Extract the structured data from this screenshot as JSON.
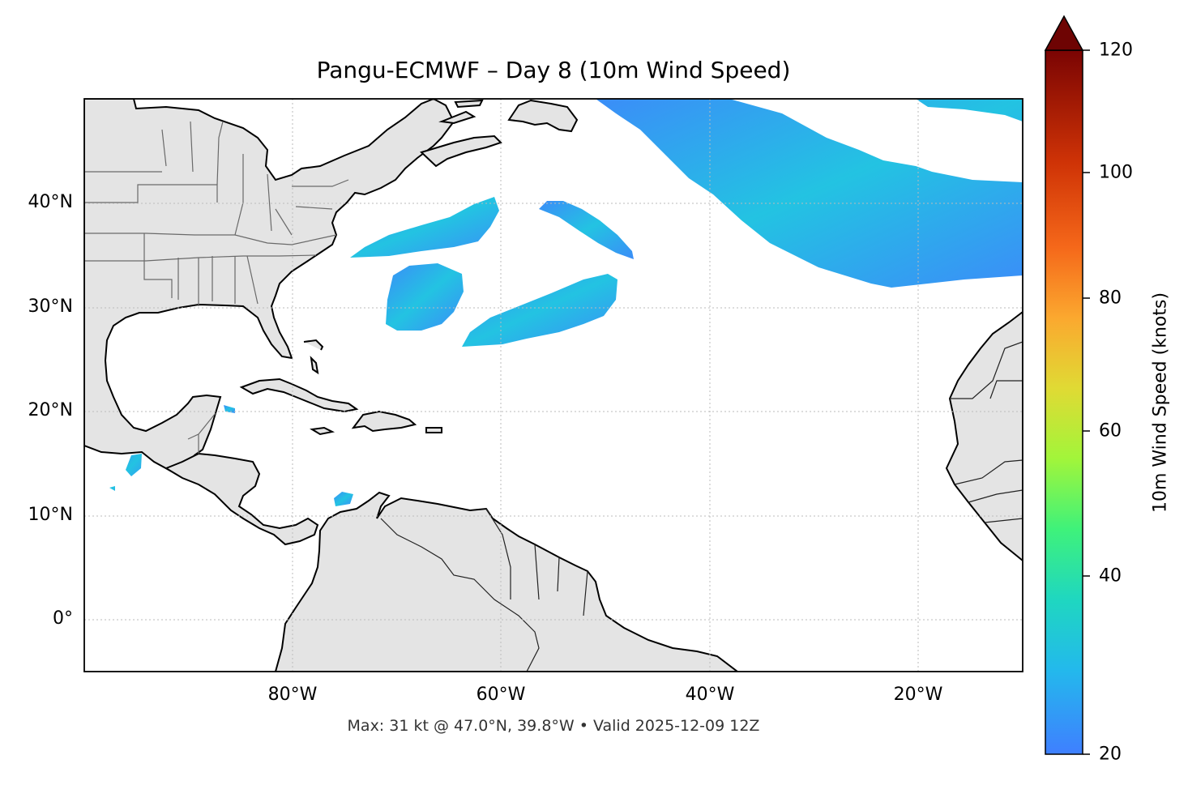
{
  "title": "Pangu-ECMWF – Day 8 (10m Wind Speed)",
  "footer": "Max: 31 kt @ 47.0°N, 39.8°W • Valid 2025-12-09 12Z",
  "lat_labels": [
    "40°N",
    "30°N",
    "20°N",
    "10°N",
    "0°"
  ],
  "lon_labels": [
    "80°W",
    "60°W",
    "40°W",
    "20°W"
  ],
  "colorbar": {
    "label": "10m Wind Speed (knots)",
    "ticks": [
      "20",
      "40",
      "60",
      "80",
      "100",
      "120"
    ],
    "min": 20,
    "max": 120,
    "extend": "max",
    "colors": [
      "#3f7fff",
      "#1fc8d8",
      "#22f09a",
      "#a2f53a",
      "#e0da34",
      "#fba82f",
      "#f5681a",
      "#cf3306",
      "#9e1302",
      "#6e0403"
    ]
  },
  "colors": {
    "land": "#e4e4e4",
    "coastline": "#000000",
    "borders": "#6a6a6a",
    "wind_low": "#3f8ff7",
    "wind_mid": "#1fc6de",
    "gridlines": "#bbbbbb"
  },
  "extent": {
    "lon": [
      -100,
      -10
    ],
    "lat": [
      -5,
      50
    ]
  },
  "max_wind": {
    "speed_kt": 31,
    "lat": 47.0,
    "lon": -39.8
  }
}
